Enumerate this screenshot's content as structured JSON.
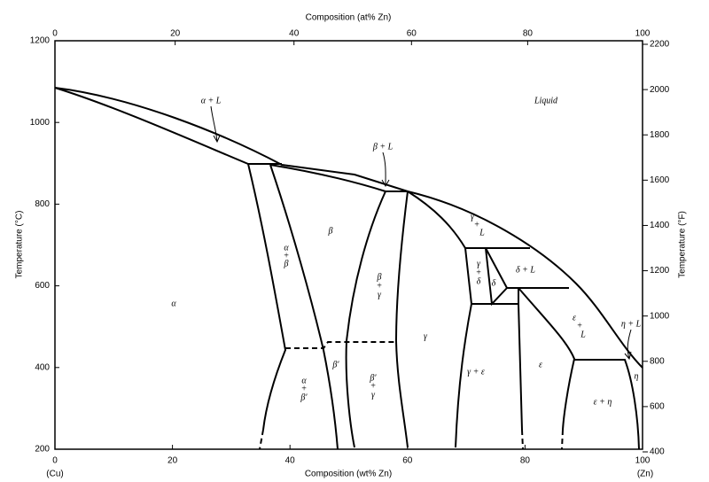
{
  "axes": {
    "top": {
      "label": "Composition (at% Zn)",
      "ticks": [
        0,
        20,
        40,
        60,
        80,
        100
      ]
    },
    "bottom": {
      "label": "Composition (wt% Zn)",
      "ticks": [
        0,
        20,
        40,
        60,
        80,
        100
      ],
      "left_end": "(Cu)",
      "right_end": "(Zn)"
    },
    "left": {
      "label": "Temperature (°C)",
      "ticks": [
        200,
        400,
        600,
        800,
        1000,
        1200
      ]
    },
    "right": {
      "label": "Temperature (°F)",
      "ticks": [
        400,
        600,
        800,
        1000,
        1200,
        1400,
        1600,
        1800,
        2000,
        2200
      ]
    }
  },
  "regions": [
    "α + L",
    "Liquid",
    "β + L",
    "α",
    "α",
    "+",
    "β",
    "β",
    "β",
    "+",
    "γ",
    "γ",
    "+",
    "L",
    "γ",
    "+",
    "δ",
    "δ",
    "δ + L",
    "γ",
    "α",
    "+",
    "β′",
    "β′",
    "β′",
    "+",
    "γ",
    "γ + ε",
    "ε",
    "ε",
    "+",
    "L",
    "η + L",
    "η",
    "ε + η"
  ]
}
